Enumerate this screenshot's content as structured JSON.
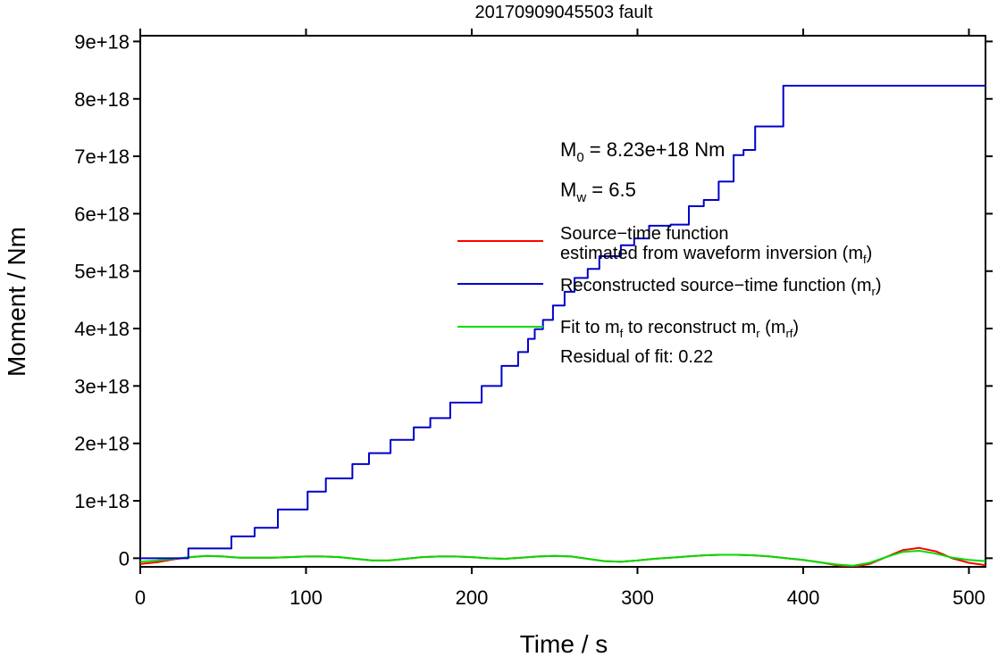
{
  "chart_data": {
    "type": "line",
    "title": "20170909045503 fault",
    "xlabel": "Time / s",
    "ylabel": "Moment / Nm",
    "xlim": [
      0,
      510
    ],
    "ylim": [
      -1.5e+17,
      9.1e+18
    ],
    "xticks": [
      0,
      100,
      200,
      300,
      400,
      500
    ],
    "xtick_labels": [
      "0",
      "100",
      "200",
      "300",
      "400",
      "500"
    ],
    "yticks": [
      0,
      1e+18,
      2e+18,
      3e+18,
      4e+18,
      5e+18,
      6e+18,
      7e+18,
      8e+18,
      9e+18
    ],
    "ytick_labels": [
      "0",
      "1e+18",
      "2e+18",
      "3e+18",
      "4e+18",
      "5e+18",
      "6e+18",
      "7e+18",
      "8e+18",
      "9e+18"
    ],
    "grid": false,
    "annotations": {
      "m0_main": "M",
      "m0_sub": "0",
      "m0_rest": " = 8.23e+18 Nm",
      "mw_main": "M",
      "mw_sub": "w",
      "mw_rest": " = 6.5"
    },
    "legend": {
      "placement": "right",
      "entries": [
        {
          "color": "#ff0000",
          "line1": "Source−time function",
          "line2_main": "estimated from waveform inversion (m",
          "line2_sub": "f",
          "line2_end": ")"
        },
        {
          "color": "#0000cc",
          "main": "Reconstructed source−time function (m",
          "sub": "r",
          "end": ")"
        },
        {
          "color": "#00dd00",
          "p1": "Fit to m",
          "s1": "f",
          "p2": " to reconstruct m",
          "s2": "r",
          "p3": " (m",
          "s3": "rf",
          "p4": ")",
          "extra": "Residual of fit: 0.22"
        }
      ]
    },
    "series": [
      {
        "name": "Reconstructed source−time function (mr)",
        "color": "#0000cc",
        "step": true,
        "x": [
          0,
          29,
          55,
          69,
          83,
          101,
          112,
          128,
          138,
          151,
          165,
          175,
          187,
          206,
          218,
          228,
          234,
          238,
          243,
          249,
          256,
          262,
          270,
          277,
          290,
          298,
          307,
          320,
          331,
          340,
          349,
          358,
          364,
          371,
          388,
          510
        ],
        "y": [
          0,
          1.7e+17,
          3.8e+17,
          5.3e+17,
          8.5e+17,
          1.16e+18,
          1.39e+18,
          1.64e+18,
          1.83e+18,
          2.06e+18,
          2.28e+18,
          2.44e+18,
          2.71e+18,
          3e+18,
          3.35e+18,
          3.59e+18,
          3.82e+18,
          3.99e+18,
          4.15e+18,
          4.4e+18,
          4.64e+18,
          4.88e+18,
          5.04e+18,
          5.26e+18,
          5.45e+18,
          5.57e+18,
          5.79e+18,
          5.81e+18,
          6.13e+18,
          6.24e+18,
          6.56e+18,
          7.02e+18,
          7.11e+18,
          7.52e+18,
          8.23e+18,
          8.23e+18
        ]
      },
      {
        "name": "Source−time function estimated from waveform inversion (mf)",
        "color": "#ff0000",
        "x": [
          0,
          10,
          20,
          30,
          40,
          50,
          60,
          70,
          80,
          90,
          100,
          110,
          120,
          130,
          140,
          150,
          160,
          170,
          180,
          190,
          200,
          210,
          220,
          230,
          240,
          250,
          260,
          270,
          280,
          290,
          300,
          310,
          320,
          330,
          340,
          350,
          360,
          370,
          380,
          390,
          400,
          410,
          420,
          430,
          440,
          450,
          460,
          470,
          480,
          490,
          500,
          510
        ],
        "y": [
          -1e+17,
          -7e+16,
          -2e+16,
          2e+16,
          4e+16,
          3e+16,
          1e+16,
          1e+16,
          1e+16,
          2e+16,
          3e+16,
          3e+16,
          2e+16,
          -1e+16,
          -4e+16,
          -4e+16,
          -1e+16,
          2e+16,
          3e+16,
          3e+16,
          2e+16,
          0,
          -1e+16,
          1e+16,
          3e+16,
          4e+16,
          3e+16,
          -1e+16,
          -5e+16,
          -6e+16,
          -4e+16,
          -1e+16,
          1e+16,
          3e+16,
          5e+16,
          6e+16,
          6e+16,
          5e+16,
          3e+16,
          0,
          -3e+16,
          -7e+16,
          -1.2e+17,
          -1.5e+17,
          -1e+17,
          2e+16,
          1.4e+17,
          1.8e+17,
          1.2e+17,
          0,
          -8e+16,
          -1.2e+17
        ]
      },
      {
        "name": "Fit to mf to reconstruct mr (mrf)",
        "color": "#00dd00",
        "x": [
          0,
          10,
          20,
          30,
          40,
          50,
          60,
          70,
          80,
          90,
          100,
          110,
          120,
          130,
          140,
          150,
          160,
          170,
          180,
          190,
          200,
          210,
          220,
          230,
          240,
          250,
          260,
          270,
          280,
          290,
          300,
          310,
          320,
          330,
          340,
          350,
          360,
          370,
          380,
          390,
          400,
          410,
          420,
          430,
          440,
          450,
          460,
          470,
          480,
          490,
          500,
          510
        ],
        "y": [
          -6e+16,
          -4e+16,
          -1e+16,
          2e+16,
          4e+16,
          3e+16,
          1e+16,
          1e+16,
          1e+16,
          2e+16,
          3e+16,
          3e+16,
          2e+16,
          -1e+16,
          -4e+16,
          -4e+16,
          -1e+16,
          2e+16,
          3e+16,
          3e+16,
          2e+16,
          0,
          -1e+16,
          1e+16,
          3e+16,
          4e+16,
          3e+16,
          -1e+16,
          -5e+16,
          -6e+16,
          -4e+16,
          -1e+16,
          1e+16,
          3e+16,
          5e+16,
          6e+16,
          6e+16,
          5e+16,
          3e+16,
          0,
          -3e+16,
          -7e+16,
          -1.1e+17,
          -1.3e+17,
          -8e+16,
          2e+16,
          1.1e+17,
          1.3e+17,
          8e+16,
          1e+16,
          -3e+16,
          -5e+16
        ]
      }
    ]
  }
}
